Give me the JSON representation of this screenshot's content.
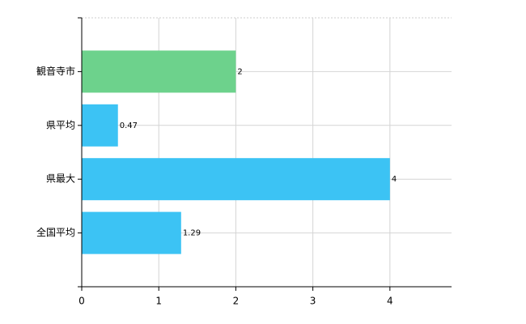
{
  "chart_data": {
    "type": "barh",
    "categories": [
      "観音寺市",
      "県平均",
      "県最大",
      "全国平均"
    ],
    "values": [
      2,
      0.47,
      4,
      1.29
    ],
    "colors": [
      "#6dd28c",
      "#3cc3f4",
      "#3cc3f4",
      "#3cc3f4"
    ],
    "xlim": [
      0,
      4.8
    ],
    "xticks": [
      0,
      1,
      2,
      3,
      4
    ],
    "grid": true
  }
}
